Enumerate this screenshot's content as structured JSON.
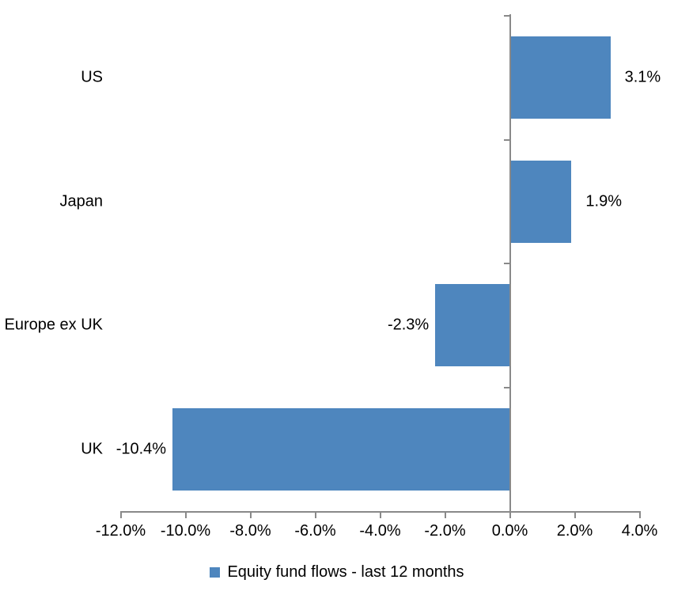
{
  "chart_data": {
    "type": "bar",
    "orientation": "horizontal",
    "title": "",
    "categories": [
      "US",
      "Japan",
      "Europe ex UK",
      "UK"
    ],
    "values": [
      3.1,
      1.9,
      -2.3,
      -10.4
    ],
    "data_labels": [
      "3.1%",
      "1.9%",
      "-2.3%",
      "-10.4%"
    ],
    "series": [
      {
        "name": "Equity fund flows - last 12 months",
        "values": [
          3.1,
          1.9,
          -2.3,
          -10.4
        ]
      }
    ],
    "x_ticks": [
      {
        "value": -12,
        "label": "-12.0%"
      },
      {
        "value": -10,
        "label": "-10.0%"
      },
      {
        "value": -8,
        "label": "-8.0%"
      },
      {
        "value": -6,
        "label": "-6.0%"
      },
      {
        "value": -4,
        "label": "-4.0%"
      },
      {
        "value": -2,
        "label": "-2.0%"
      },
      {
        "value": 0,
        "label": "0.0%"
      },
      {
        "value": 2,
        "label": "2.0%"
      },
      {
        "value": 4,
        "label": "4.0%"
      }
    ],
    "xlim": [
      -12,
      4
    ],
    "grid": false,
    "legend": {
      "label": "Equity fund flows - last 12 months",
      "position": "bottom"
    },
    "colors": {
      "bar": "#4E86BE",
      "axis": "#898989",
      "text": "#000000"
    }
  }
}
